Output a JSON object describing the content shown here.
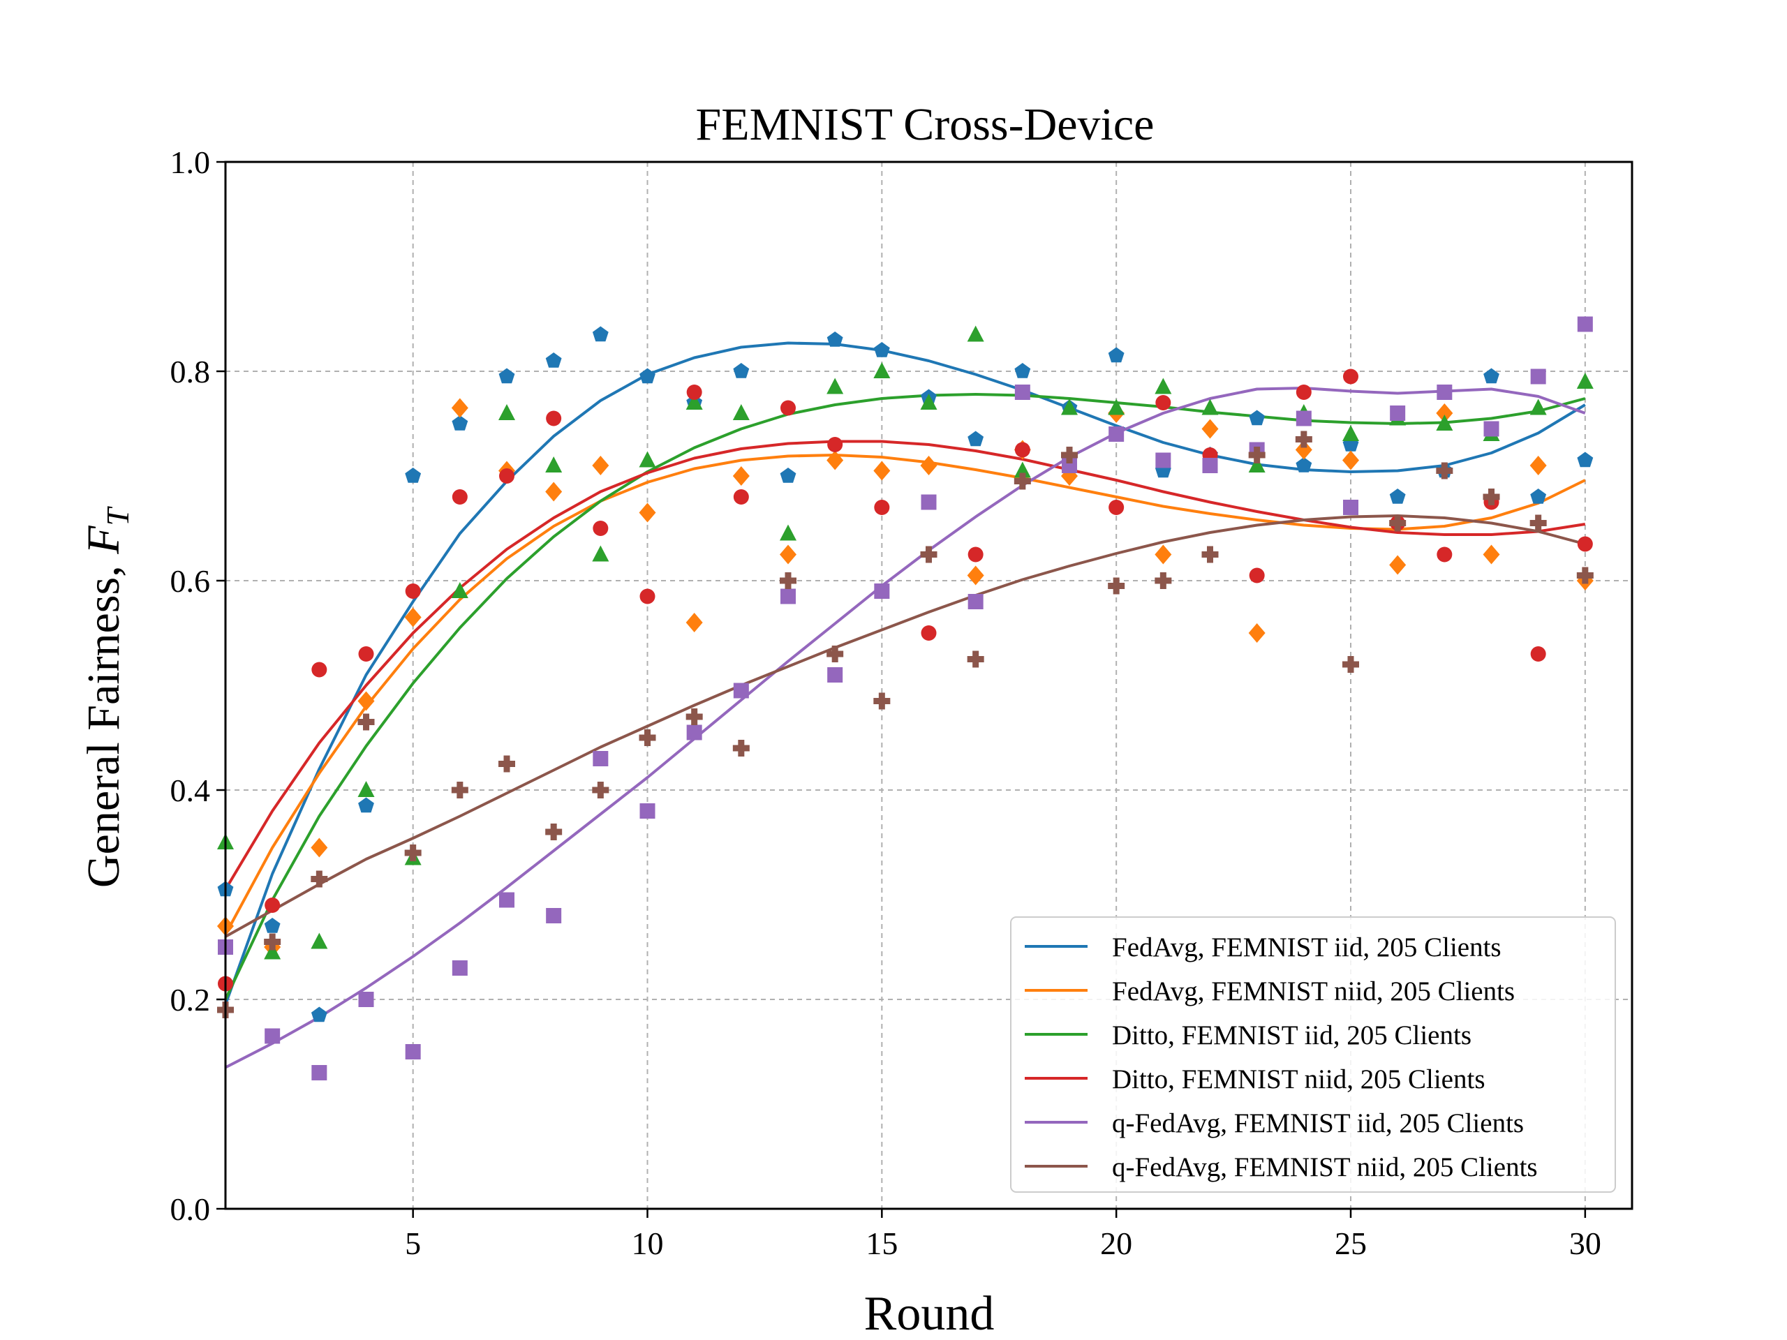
{
  "chart_data": {
    "type": "scatter",
    "title": "FEMNIST Cross-Device",
    "xlabel": "Round",
    "ylabel_main": "General Fairness, ",
    "ylabel_symbol": "F",
    "ylabel_subscript": "T",
    "xlim": [
      1,
      31
    ],
    "ylim": [
      0,
      1
    ],
    "xticks": [
      5,
      10,
      15,
      20,
      25,
      30
    ],
    "yticks": [
      0.0,
      0.2,
      0.4,
      0.6,
      0.8,
      1.0
    ],
    "ytick_labels": [
      "0.0",
      "0.2",
      "0.4",
      "0.6",
      "0.8",
      "1.0"
    ],
    "xtick_labels": [
      "5",
      "10",
      "15",
      "20",
      "25",
      "30"
    ],
    "grid": true,
    "legend_position": "bottom-right",
    "x": [
      1,
      2,
      3,
      4,
      5,
      6,
      7,
      8,
      9,
      10,
      11,
      12,
      13,
      14,
      15,
      16,
      17,
      18,
      19,
      20,
      21,
      22,
      23,
      24,
      25,
      26,
      27,
      28,
      29,
      30
    ],
    "series": [
      {
        "name": "FedAvg, FEMNIST iid, 205 Clients",
        "color": "#1f77b4",
        "marker": "pentagon",
        "points": [
          0.305,
          0.27,
          0.185,
          0.385,
          0.7,
          0.75,
          0.795,
          0.81,
          0.835,
          0.795,
          0.77,
          0.8,
          0.7,
          0.83,
          0.82,
          0.775,
          0.735,
          0.8,
          0.765,
          0.815,
          0.705,
          0.72,
          0.755,
          0.71,
          0.73,
          0.68,
          0.705,
          0.795,
          0.68,
          0.715
        ],
        "fit": [
          0.195,
          0.32,
          0.42,
          0.51,
          0.58,
          0.645,
          0.695,
          0.738,
          0.772,
          0.797,
          0.813,
          0.823,
          0.827,
          0.826,
          0.82,
          0.81,
          0.797,
          0.782,
          0.765,
          0.748,
          0.732,
          0.72,
          0.711,
          0.706,
          0.704,
          0.705,
          0.71,
          0.722,
          0.741,
          0.768
        ]
      },
      {
        "name": "FedAvg, FEMNIST niid, 205 Clients",
        "color": "#ff7f0e",
        "marker": "diamond",
        "points": [
          0.27,
          0.25,
          0.345,
          0.485,
          0.565,
          0.765,
          0.705,
          0.685,
          0.71,
          0.665,
          0.56,
          0.7,
          0.625,
          0.715,
          0.705,
          0.71,
          0.605,
          0.725,
          0.7,
          0.76,
          0.625,
          0.745,
          0.55,
          0.725,
          0.715,
          0.615,
          0.76,
          0.625,
          0.71,
          0.6
        ],
        "fit": [
          0.262,
          0.345,
          0.416,
          0.48,
          0.535,
          0.582,
          0.621,
          0.652,
          0.676,
          0.694,
          0.707,
          0.715,
          0.719,
          0.72,
          0.718,
          0.713,
          0.706,
          0.698,
          0.689,
          0.68,
          0.671,
          0.664,
          0.658,
          0.653,
          0.65,
          0.649,
          0.652,
          0.66,
          0.674,
          0.696
        ]
      },
      {
        "name": "Ditto, FEMNIST iid, 205 Clients",
        "color": "#2ca02c",
        "marker": "triangle",
        "points": [
          0.35,
          0.245,
          0.255,
          0.4,
          0.335,
          0.59,
          0.76,
          0.71,
          0.625,
          0.715,
          0.77,
          0.76,
          0.645,
          0.785,
          0.8,
          0.77,
          0.835,
          0.705,
          0.765,
          0.765,
          0.785,
          0.765,
          0.71,
          0.76,
          0.74,
          0.755,
          0.75,
          0.74,
          0.765,
          0.79
        ],
        "fit": [
          0.2,
          0.295,
          0.375,
          0.442,
          0.502,
          0.555,
          0.602,
          0.642,
          0.676,
          0.704,
          0.727,
          0.745,
          0.759,
          0.768,
          0.774,
          0.777,
          0.778,
          0.777,
          0.774,
          0.77,
          0.766,
          0.761,
          0.757,
          0.753,
          0.751,
          0.75,
          0.751,
          0.755,
          0.762,
          0.774
        ]
      },
      {
        "name": "Ditto, FEMNIST niid, 205 Clients",
        "color": "#d62728",
        "marker": "circle",
        "points": [
          0.215,
          0.29,
          0.515,
          0.53,
          0.59,
          0.68,
          0.7,
          0.755,
          0.65,
          0.585,
          0.78,
          0.68,
          0.765,
          0.73,
          0.67,
          0.55,
          0.625,
          0.725,
          0.715,
          0.67,
          0.77,
          0.72,
          0.605,
          0.78,
          0.795,
          0.655,
          0.625,
          0.675,
          0.53,
          0.635
        ],
        "fit": [
          0.305,
          0.38,
          0.445,
          0.5,
          0.55,
          0.593,
          0.63,
          0.66,
          0.685,
          0.703,
          0.717,
          0.726,
          0.731,
          0.733,
          0.733,
          0.73,
          0.724,
          0.716,
          0.706,
          0.696,
          0.685,
          0.675,
          0.666,
          0.658,
          0.651,
          0.646,
          0.644,
          0.644,
          0.647,
          0.654
        ]
      },
      {
        "name": "q-FedAvg, FEMNIST iid, 205 Clients",
        "color": "#9467bd",
        "marker": "square",
        "points": [
          0.25,
          0.165,
          0.13,
          0.2,
          0.15,
          0.23,
          0.295,
          0.28,
          0.43,
          0.38,
          0.455,
          0.495,
          0.585,
          0.51,
          0.59,
          0.675,
          0.58,
          0.78,
          0.71,
          0.74,
          0.715,
          0.71,
          0.725,
          0.755,
          0.67,
          0.76,
          0.78,
          0.745,
          0.795,
          0.845
        ],
        "fit": [
          0.135,
          0.158,
          0.183,
          0.211,
          0.241,
          0.273,
          0.307,
          0.342,
          0.377,
          0.412,
          0.449,
          0.486,
          0.523,
          0.559,
          0.595,
          0.629,
          0.661,
          0.691,
          0.718,
          0.741,
          0.76,
          0.774,
          0.783,
          0.784,
          0.781,
          0.779,
          0.781,
          0.783,
          0.776,
          0.76
        ]
      },
      {
        "name": "q-FedAvg, FEMNIST niid, 205 Clients",
        "color": "#8c564b",
        "marker": "plus",
        "points": [
          0.19,
          0.255,
          0.315,
          0.465,
          0.34,
          0.4,
          0.425,
          0.36,
          0.4,
          0.45,
          0.47,
          0.44,
          0.6,
          0.53,
          0.485,
          0.625,
          0.525,
          0.695,
          0.72,
          0.595,
          0.6,
          0.625,
          0.72,
          0.735,
          0.52,
          0.655,
          0.705,
          0.68,
          0.655,
          0.605
        ],
        "fit": [
          0.26,
          0.285,
          0.31,
          0.334,
          0.354,
          0.375,
          0.397,
          0.419,
          0.441,
          0.461,
          0.481,
          0.5,
          0.518,
          0.536,
          0.553,
          0.57,
          0.586,
          0.601,
          0.614,
          0.626,
          0.637,
          0.646,
          0.653,
          0.658,
          0.661,
          0.662,
          0.66,
          0.655,
          0.647,
          0.635
        ]
      }
    ]
  }
}
